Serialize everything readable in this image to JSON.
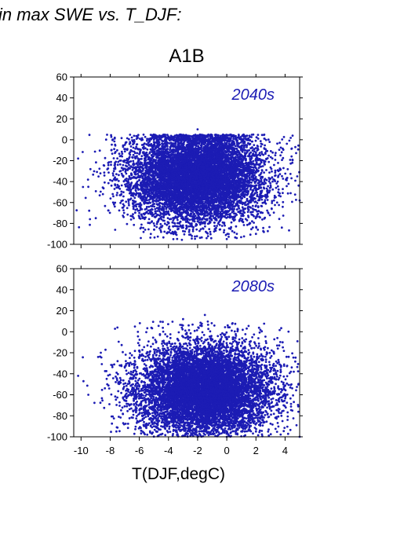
{
  "figure_title": "in max SWE vs. T_DJF:",
  "panel_title": "A1B",
  "xlabel": "T(DJF,degC)",
  "colors": {
    "points": "#1c1cb4",
    "axes": "#000000"
  },
  "chart_data": [
    {
      "type": "scatter",
      "title": "2040s",
      "xlim": [
        -10.5,
        5
      ],
      "ylim": [
        -100,
        60
      ],
      "xticks": [
        -10,
        -8,
        -6,
        -4,
        -2,
        0,
        2,
        4
      ],
      "yticks": [
        -100,
        -80,
        -60,
        -40,
        -20,
        0,
        20,
        40,
        60
      ],
      "xlabel": "T(DJF,degC)",
      "ylabel": "",
      "cloud": {
        "x_range": [
          -10.5,
          5
        ],
        "y_range": [
          -96,
          11
        ],
        "center": [
          -2,
          -35
        ],
        "approx_points": 9000
      },
      "sample_points": [
        {
          "x": -10.2,
          "y": -18
        },
        {
          "x": -9.5,
          "y": -45
        },
        {
          "x": -8.5,
          "y": -52
        },
        {
          "x": -7.8,
          "y": -60
        },
        {
          "x": -7,
          "y": -5
        },
        {
          "x": -6,
          "y": -70
        },
        {
          "x": -4,
          "y": -80
        },
        {
          "x": -2,
          "y": 10
        },
        {
          "x": 0,
          "y": -95
        },
        {
          "x": 2,
          "y": -90
        },
        {
          "x": 3.5,
          "y": -40
        },
        {
          "x": 4.5,
          "y": -22
        },
        {
          "x": 5,
          "y": -58
        }
      ]
    },
    {
      "type": "scatter",
      "title": "2080s",
      "xlim": [
        -10.5,
        5
      ],
      "ylim": [
        -100,
        60
      ],
      "xticks": [
        -10,
        -8,
        -6,
        -4,
        -2,
        0,
        2,
        4
      ],
      "yticks": [
        -100,
        -80,
        -60,
        -40,
        -20,
        0,
        20,
        40,
        60
      ],
      "xlabel": "T(DJF,degC)",
      "ylabel": "",
      "cloud": {
        "x_range": [
          -10.5,
          5
        ],
        "y_range": [
          -100,
          16
        ],
        "center": [
          -1.5,
          -55
        ],
        "approx_points": 9000
      },
      "sample_points": [
        {
          "x": -10.2,
          "y": -42
        },
        {
          "x": -9.5,
          "y": -60
        },
        {
          "x": -8.2,
          "y": -50
        },
        {
          "x": -7.5,
          "y": 4
        },
        {
          "x": -5,
          "y": -90
        },
        {
          "x": -3,
          "y": 12
        },
        {
          "x": -1.5,
          "y": 16
        },
        {
          "x": 0,
          "y": -100
        },
        {
          "x": 2,
          "y": -95
        },
        {
          "x": 3.5,
          "y": -60
        },
        {
          "x": 4.5,
          "y": -75
        },
        {
          "x": 5,
          "y": -100
        }
      ]
    }
  ]
}
